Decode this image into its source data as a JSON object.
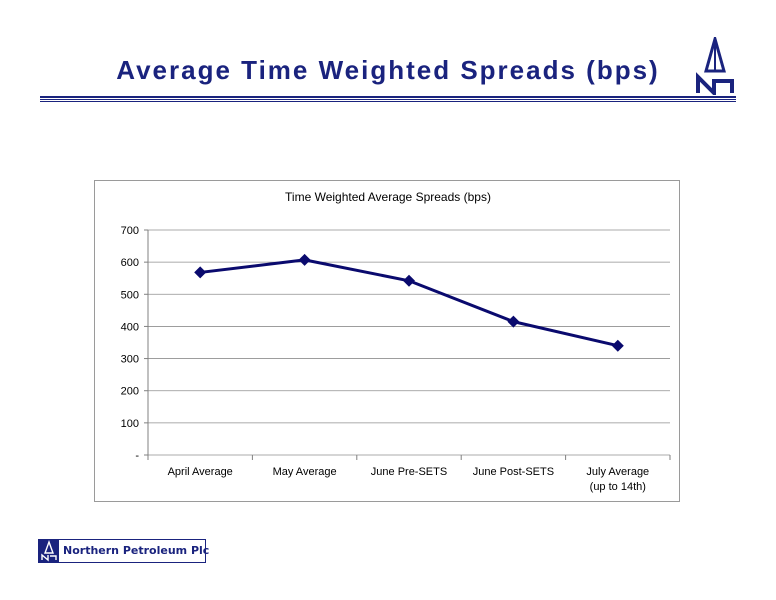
{
  "slide": {
    "title": "Average Time Weighted Spreads (bps)",
    "company_name": "Northern Petroleum Plc"
  },
  "colors": {
    "brand": "#1a237e",
    "series": "#0a0a6e",
    "grid": "#8f8f8f"
  },
  "chart_data": {
    "type": "line",
    "title": "Time Weighted Average Spreads (bps)",
    "xlabel": "",
    "ylabel": "",
    "categories": [
      [
        "April Average"
      ],
      [
        "May Average"
      ],
      [
        "June Pre-SETS"
      ],
      [
        "June Post-SETS"
      ],
      [
        "July Average",
        "(up to 14th)"
      ]
    ],
    "series": [
      {
        "values": [
          568,
          607,
          542,
          415,
          340
        ],
        "marker": "diamond"
      }
    ],
    "ylim": [
      0,
      700
    ],
    "yticks": [
      0,
      100,
      200,
      300,
      400,
      500,
      600,
      700
    ],
    "ytick_labels": [
      "-",
      "100",
      "200",
      "300",
      "400",
      "500",
      "600",
      "700"
    ],
    "grid": true,
    "legend": "none"
  }
}
